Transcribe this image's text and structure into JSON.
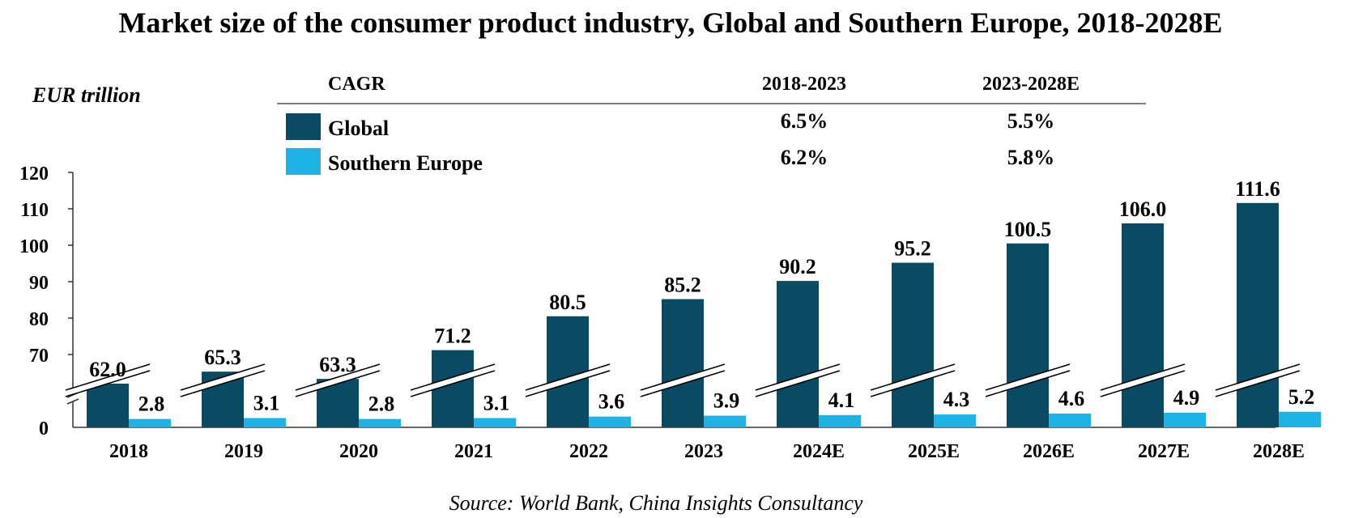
{
  "chart_data": {
    "type": "bar",
    "title": "Market size of the consumer product industry, Global and Southern Europe, 2018-2028E",
    "ylabel": "EUR trillion",
    "xlabel": "",
    "categories": [
      "2018",
      "2019",
      "2020",
      "2021",
      "2022",
      "2023",
      "2024E",
      "2025E",
      "2026E",
      "2027E",
      "2028E"
    ],
    "series": [
      {
        "name": "Global",
        "color": "#0a4a62",
        "values": [
          62.0,
          65.3,
          63.3,
          71.2,
          80.5,
          85.2,
          90.2,
          95.2,
          100.5,
          106.0,
          111.6
        ],
        "labels": [
          "62.0",
          "65.3",
          "63.3",
          "71.2",
          "80.5",
          "85.2",
          "90.2",
          "95.2",
          "100.5",
          "106.0",
          "111.6"
        ]
      },
      {
        "name": "Southern Europe",
        "color": "#1fb2e6",
        "values": [
          2.8,
          3.1,
          2.8,
          3.1,
          3.6,
          3.9,
          4.1,
          4.3,
          4.6,
          4.9,
          5.2
        ],
        "labels": [
          "2.8",
          "3.1",
          "2.8",
          "3.1",
          "3.6",
          "3.9",
          "4.1",
          "4.3",
          "4.6",
          "4.9",
          "5.2"
        ]
      }
    ],
    "y_axis": {
      "broken": true,
      "upper_ticks": [
        70,
        80,
        90,
        100,
        110,
        120
      ],
      "upper_tick_labels": [
        "70",
        "80",
        "90",
        "100",
        "110",
        "120"
      ],
      "lower_tick": 0,
      "lower_tick_label": "0",
      "upper_range": [
        60,
        120
      ],
      "lower_range": [
        0,
        10
      ]
    },
    "cagr_table": {
      "header": "CAGR",
      "periods": [
        "2018-2023",
        "2023-2028E"
      ],
      "rows": [
        {
          "name": "Global",
          "values": [
            "6.5%",
            "5.5%"
          ]
        },
        {
          "name": "Southern Europe",
          "values": [
            "6.2%",
            "5.8%"
          ]
        }
      ]
    },
    "source": "Source: World Bank, China Insights Consultancy"
  }
}
